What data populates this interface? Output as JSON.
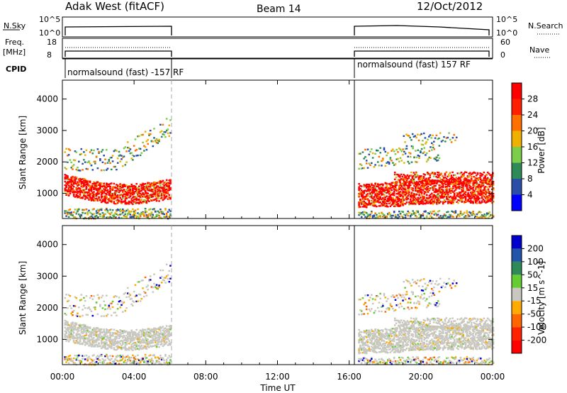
{
  "header": {
    "station": "Adak West (fitACF)",
    "beam": "Beam 14",
    "date": "12/Oct/2012"
  },
  "labels": {
    "nsky": "N.Sky",
    "freq": "Freq.",
    "mhz": "[MHz]",
    "cpid": "CPID",
    "nsearch": "N.Search",
    "nave": "Nave",
    "nsky_top": "10^5",
    "nsky_bottom": "10^0",
    "freq_top": "18",
    "freq_bottom": "8",
    "nave_top": "60",
    "nave_bottom": "0",
    "cpid_1": "normalsound (fast) -157 RF",
    "cpid_2": "normalsound (fast) 157 RF"
  },
  "chart_data": [
    {
      "type": "heatmap",
      "title": "",
      "ylabel": "Slant Range [km]",
      "xlabel": "",
      "ylim": [
        200,
        4600
      ],
      "yticks": [
        1000,
        2000,
        3000,
        4000
      ],
      "xlim_hours": [
        0,
        24
      ],
      "colorbar": {
        "label": "Power [dB]",
        "ticks": [
          "4",
          "8",
          "12",
          "16",
          "20",
          "24",
          "28"
        ],
        "colors": [
          "#0000ff",
          "#2a4ea8",
          "#2e8b57",
          "#7ccd4a",
          "#f0b000",
          "#ff7000",
          "#ff2000",
          "#ff0000"
        ]
      },
      "coverage": [
        {
          "start": "00:00",
          "end": "06:00"
        },
        {
          "start": "16:30",
          "end": "24:00"
        }
      ],
      "features": [
        {
          "time": "00:00-06:00",
          "range_km": [
            800,
            1600
          ],
          "level": "~28 dB"
        },
        {
          "time": "16:30-24:00",
          "range_km": [
            500,
            1500
          ],
          "level": "~28 dB"
        },
        {
          "time": "00:00-06:00",
          "range_km": [
            1800,
            3500
          ],
          "level": "8-20 dB"
        },
        {
          "time": "16:30-21:00",
          "range_km": [
            1700,
            2600
          ],
          "level": "8-20 dB"
        }
      ]
    },
    {
      "type": "heatmap",
      "title": "",
      "ylabel": "Slant Range [km]",
      "xlabel": "Time UT",
      "ylim": [
        200,
        4600
      ],
      "yticks": [
        1000,
        2000,
        3000,
        4000
      ],
      "xticks": [
        "00:00",
        "04:00",
        "08:00",
        "12:00",
        "16:00",
        "20:00",
        "00:00"
      ],
      "colorbar": {
        "label": "Velocity [m s^-1]",
        "ticks": [
          "200",
          "100",
          "50",
          "15",
          "-15",
          "-50",
          "-100",
          "-200"
        ],
        "colors": [
          "#0000cc",
          "#2255aa",
          "#2e8b57",
          "#66cc33",
          "#c8c8c0",
          "#ffaa00",
          "#ff6600",
          "#ff2200",
          "#ff0000"
        ]
      },
      "features": [
        {
          "time": "00:00-06:00",
          "range_km": [
            800,
            1600
          ],
          "velocity": "-15 to 15"
        },
        {
          "time": "16:30-24:00",
          "range_km": [
            500,
            1500
          ],
          "velocity": "-15 to 15"
        },
        {
          "time": "16:30-18:00",
          "range_km": [
            2000,
            2400
          ],
          "velocity": "-200 to 200"
        }
      ]
    }
  ]
}
